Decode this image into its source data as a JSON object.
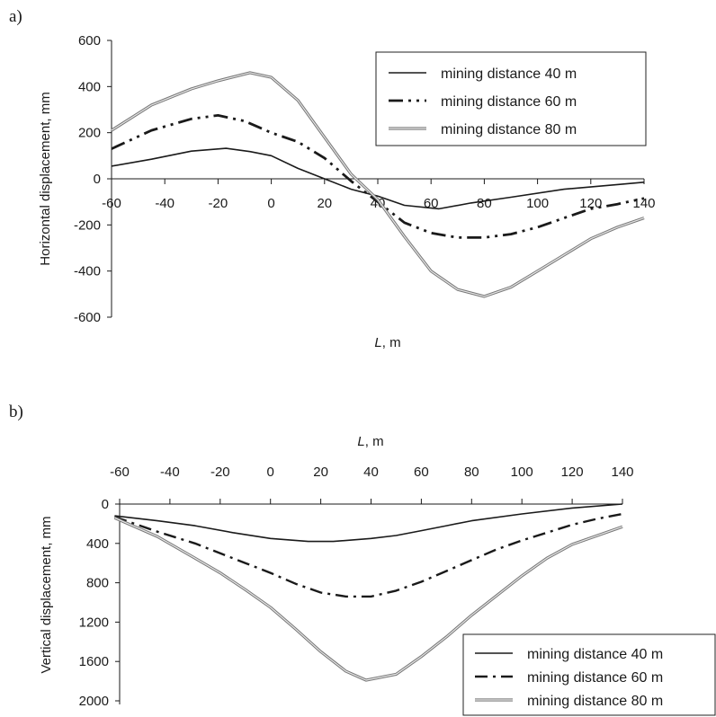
{
  "chart_data": [
    {
      "panel_label": "a)",
      "type": "line",
      "xlabel_italic": "L",
      "xlabel_unit": ", m",
      "ylabel": "Horizontal displacement, mm",
      "xlim": [
        -60,
        140
      ],
      "ylim": [
        -600,
        600
      ],
      "x_ticks": [
        "-60",
        "-40",
        "-20",
        "0",
        "20",
        "40",
        "60",
        "80",
        "100",
        "120",
        "140"
      ],
      "y_ticks": [
        "600",
        "400",
        "200",
        "0",
        "-200",
        "-400",
        "-600"
      ],
      "grid": false,
      "legend_position": "top-right",
      "series": [
        {
          "name": "mining distance 40 m",
          "style": "solid",
          "x": [
            -60,
            -45,
            -30,
            -17,
            -8,
            0,
            10,
            20,
            30,
            40,
            50,
            63,
            75,
            90,
            110,
            130,
            140
          ],
          "y": [
            55,
            85,
            120,
            132,
            118,
            100,
            45,
            0,
            -45,
            -75,
            -115,
            -130,
            -105,
            -80,
            -45,
            -25,
            -15
          ]
        },
        {
          "name": "mining distance 60 m",
          "style": "dash-dot-dot",
          "x": [
            -60,
            -45,
            -30,
            -20,
            -10,
            0,
            10,
            20,
            30,
            40,
            50,
            60,
            70,
            80,
            90,
            100,
            110,
            120,
            130,
            140
          ],
          "y": [
            130,
            210,
            260,
            275,
            250,
            200,
            160,
            90,
            -10,
            -100,
            -190,
            -235,
            -255,
            -255,
            -240,
            -210,
            -170,
            -130,
            -110,
            -85
          ]
        },
        {
          "name": "mining distance 80 m",
          "style": "double-thin",
          "x": [
            -60,
            -45,
            -30,
            -20,
            -8,
            0,
            10,
            20,
            30,
            40,
            50,
            60,
            70,
            80,
            90,
            100,
            110,
            120,
            130,
            140
          ],
          "y": [
            210,
            320,
            390,
            425,
            460,
            440,
            340,
            180,
            20,
            -90,
            -250,
            -400,
            -480,
            -510,
            -470,
            -400,
            -330,
            -260,
            -210,
            -170
          ]
        }
      ]
    },
    {
      "panel_label": "b)",
      "type": "line",
      "xlabel_italic": "L",
      "xlabel_unit": ", m",
      "ylabel": "Vertical displacement, mm",
      "xlim": [
        -60,
        140
      ],
      "ylim": [
        0,
        2000
      ],
      "y_inverted": true,
      "x_axis_position": "top",
      "x_ticks": [
        "-60",
        "-40",
        "-20",
        "0",
        "20",
        "40",
        "60",
        "80",
        "100",
        "120",
        "140"
      ],
      "y_ticks": [
        "0",
        "400",
        "800",
        "1200",
        "1600",
        "2000"
      ],
      "grid": false,
      "legend_position": "bottom-right",
      "series": [
        {
          "name": "mining distance 40 m",
          "style": "solid",
          "x": [
            -62,
            -45,
            -30,
            -15,
            0,
            15,
            25,
            40,
            50,
            60,
            70,
            80,
            100,
            120,
            140
          ],
          "y": [
            120,
            170,
            220,
            290,
            350,
            380,
            380,
            350,
            320,
            270,
            220,
            170,
            100,
            40,
            0
          ]
        },
        {
          "name": "mining distance 60 m",
          "style": "dash-dot",
          "x": [
            -62,
            -45,
            -30,
            -20,
            -10,
            0,
            10,
            20,
            30,
            40,
            50,
            60,
            70,
            80,
            90,
            100,
            110,
            120,
            130,
            140
          ],
          "y": [
            130,
            280,
            400,
            500,
            600,
            700,
            810,
            900,
            940,
            940,
            880,
            790,
            680,
            570,
            460,
            370,
            290,
            210,
            150,
            100
          ]
        },
        {
          "name": "mining distance 80 m",
          "style": "double-thin",
          "x": [
            -62,
            -45,
            -30,
            -20,
            -10,
            0,
            10,
            20,
            30,
            38,
            50,
            60,
            70,
            80,
            90,
            100,
            110,
            120,
            140
          ],
          "y": [
            140,
            330,
            550,
            700,
            870,
            1050,
            1270,
            1500,
            1700,
            1790,
            1730,
            1550,
            1350,
            1130,
            930,
            730,
            550,
            410,
            230
          ]
        }
      ]
    }
  ]
}
